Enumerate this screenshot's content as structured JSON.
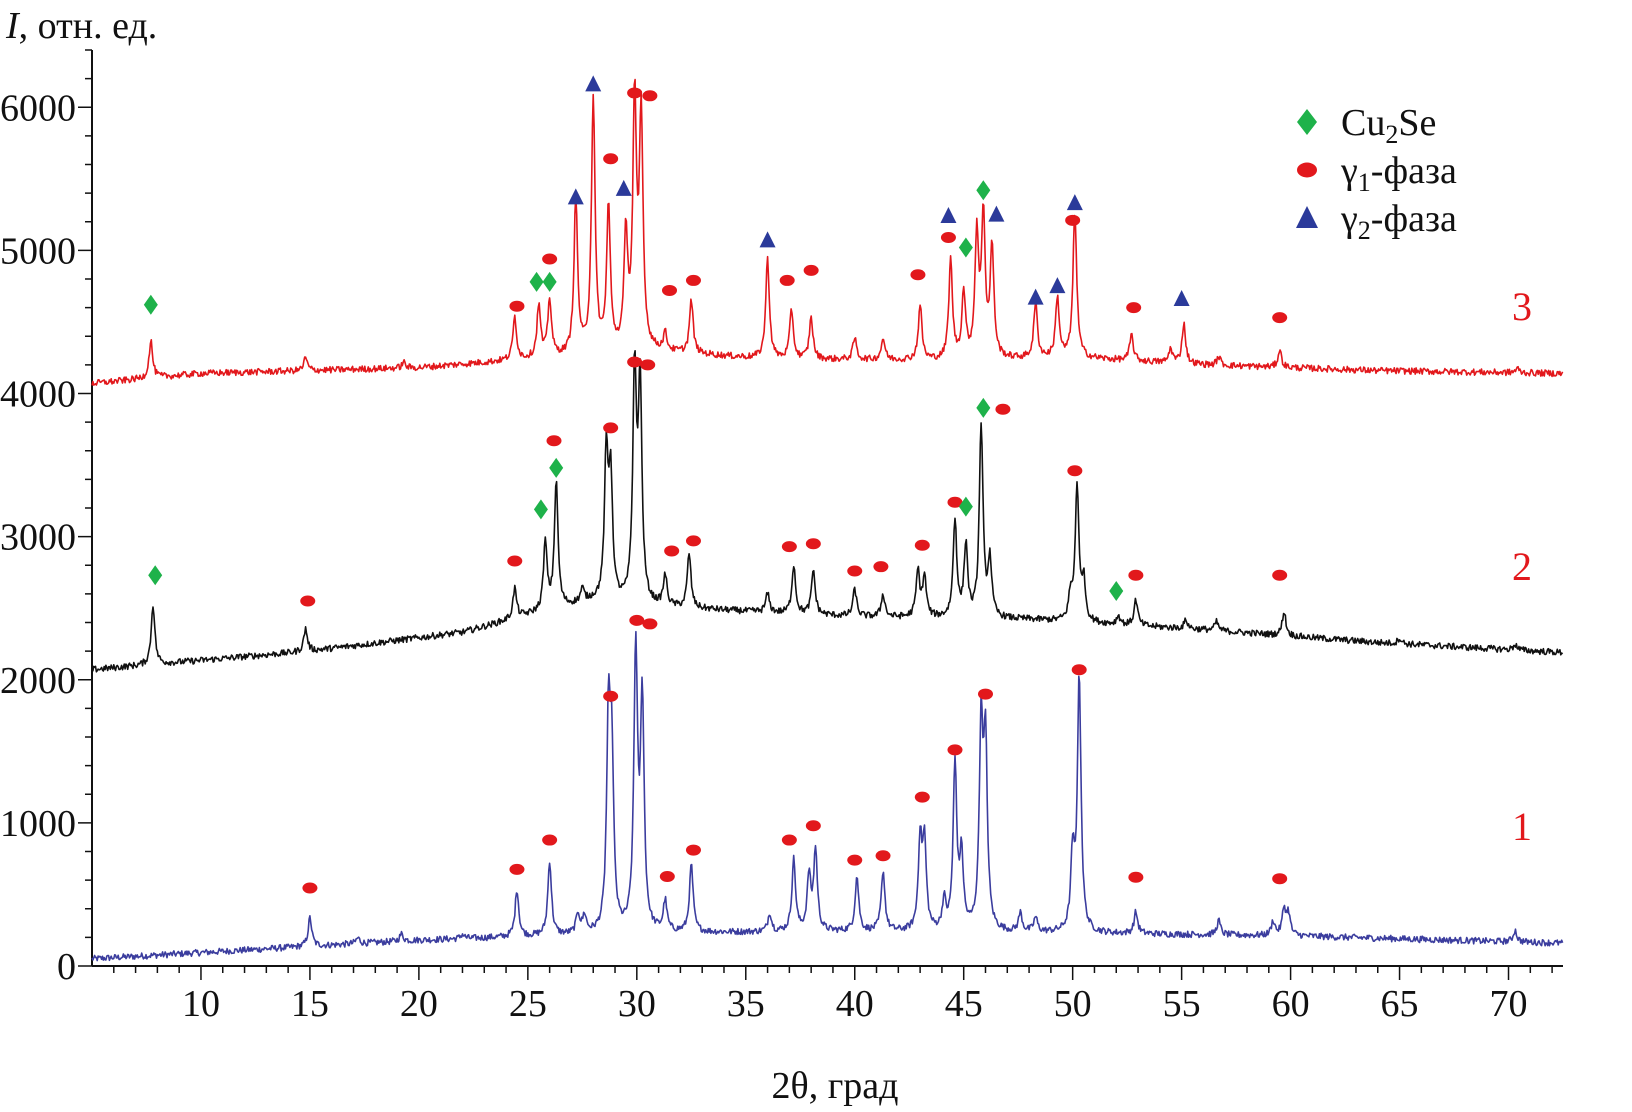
{
  "chart_data": {
    "type": "line",
    "ylabel_italic": "I",
    "ylabel_rest": ", отн. ед.",
    "xlabel": "2θ, град",
    "xlim": [
      5,
      72.5
    ],
    "ylim": [
      0,
      6400
    ],
    "x_ticks": [
      10,
      15,
      20,
      25,
      30,
      35,
      40,
      45,
      50,
      55,
      60,
      65,
      70
    ],
    "y_ticks": [
      0,
      1000,
      2000,
      3000,
      4000,
      5000,
      6000
    ],
    "legend": {
      "placement": "top-right",
      "entries": [
        {
          "marker": "diamond",
          "color": "#1eb24a",
          "text": "Cu",
          "sub": "2",
          "tail": "Se"
        },
        {
          "marker": "circle",
          "color": "#e2181c",
          "text": "γ",
          "sub": "1",
          "tail": "-фаза"
        },
        {
          "marker": "triangle",
          "color": "#2b3a9a",
          "text": "γ",
          "sub": "2",
          "tail": "-фаза"
        }
      ]
    },
    "series": [
      {
        "label": "1",
        "color": "#3b3d9e",
        "label_color": "#e2181c",
        "baseline": [
          [
            5,
            50
          ],
          [
            20,
            180
          ],
          [
            30,
            230
          ],
          [
            40,
            240
          ],
          [
            50,
            230
          ],
          [
            60,
            210
          ],
          [
            72.5,
            160
          ]
        ],
        "peaks": [
          [
            15,
            200
          ],
          [
            17.2,
            40
          ],
          [
            19.2,
            50
          ],
          [
            22,
            30
          ],
          [
            24.5,
            330
          ],
          [
            26,
            520
          ],
          [
            27.3,
            140
          ],
          [
            27.6,
            120
          ],
          [
            28.7,
            1400
          ],
          [
            28.85,
            1150
          ],
          [
            29.95,
            1950
          ],
          [
            30.25,
            1600
          ],
          [
            31.3,
            210
          ],
          [
            32.5,
            470
          ],
          [
            36.1,
            130
          ],
          [
            37.2,
            500
          ],
          [
            37.9,
            380
          ],
          [
            38.2,
            560
          ],
          [
            40.1,
            380
          ],
          [
            41.3,
            420
          ],
          [
            43,
            620
          ],
          [
            43.2,
            600
          ],
          [
            44.1,
            200
          ],
          [
            44.6,
            1150
          ],
          [
            44.9,
            500
          ],
          [
            45.8,
            1400
          ],
          [
            46,
            1250
          ],
          [
            47.6,
            130
          ],
          [
            48.3,
            100
          ],
          [
            50,
            520
          ],
          [
            50.3,
            1780
          ],
          [
            52.9,
            150
          ],
          [
            56.7,
            100
          ],
          [
            59.2,
            100
          ],
          [
            59.7,
            180
          ],
          [
            59.9,
            150
          ],
          [
            70.3,
            80
          ]
        ],
        "markers": [
          {
            "type": "circle",
            "x": 15,
            "y": 545
          },
          {
            "type": "circle",
            "x": 24.5,
            "y": 675
          },
          {
            "type": "circle",
            "x": 26,
            "y": 880
          },
          {
            "type": "circle",
            "x": 28.8,
            "y": 1885
          },
          {
            "type": "circle",
            "x": 30,
            "y": 2415
          },
          {
            "type": "circle",
            "x": 30.6,
            "y": 2390
          },
          {
            "type": "circle",
            "x": 31.4,
            "y": 625
          },
          {
            "type": "circle",
            "x": 32.6,
            "y": 810
          },
          {
            "type": "circle",
            "x": 37.0,
            "y": 880
          },
          {
            "type": "circle",
            "x": 38.1,
            "y": 980
          },
          {
            "type": "circle",
            "x": 40.0,
            "y": 740
          },
          {
            "type": "circle",
            "x": 41.3,
            "y": 770
          },
          {
            "type": "circle",
            "x": 43.1,
            "y": 1180
          },
          {
            "type": "circle",
            "x": 44.6,
            "y": 1510
          },
          {
            "type": "circle",
            "x": 46.0,
            "y": 1900
          },
          {
            "type": "circle",
            "x": 50.3,
            "y": 2070
          },
          {
            "type": "circle",
            "x": 52.9,
            "y": 620
          },
          {
            "type": "circle",
            "x": 59.5,
            "y": 610
          }
        ]
      },
      {
        "label": "2",
        "color": "#111111",
        "label_color": "#e2181c",
        "baseline": [
          [
            5,
            2070
          ],
          [
            15,
            2200
          ],
          [
            22,
            2330
          ],
          [
            25,
            2450
          ],
          [
            28,
            2550
          ],
          [
            32,
            2500
          ],
          [
            40,
            2440
          ],
          [
            48,
            2420
          ],
          [
            56,
            2350
          ],
          [
            64,
            2260
          ],
          [
            72.5,
            2190
          ]
        ],
        "peaks": [
          [
            7.8,
            420
          ],
          [
            14.8,
            160
          ],
          [
            24.4,
            210
          ],
          [
            25.8,
            470
          ],
          [
            26.3,
            880
          ],
          [
            27.5,
            90
          ],
          [
            28.6,
            1000
          ],
          [
            28.8,
            850
          ],
          [
            29.9,
            1600
          ],
          [
            30.15,
            1500
          ],
          [
            31.3,
            210
          ],
          [
            32.4,
            380
          ],
          [
            36.0,
            130
          ],
          [
            37.2,
            340
          ],
          [
            38.1,
            310
          ],
          [
            40.0,
            190
          ],
          [
            41.3,
            160
          ],
          [
            42.9,
            320
          ],
          [
            43.2,
            280
          ],
          [
            44.6,
            680
          ],
          [
            45.1,
            500
          ],
          [
            45.8,
            1350
          ],
          [
            46.2,
            400
          ],
          [
            49.9,
            170
          ],
          [
            50.2,
            950
          ],
          [
            50.5,
            280
          ],
          [
            52.1,
            60
          ],
          [
            52.9,
            180
          ],
          [
            55.2,
            60
          ],
          [
            56.6,
            60
          ],
          [
            59.7,
            170
          ],
          [
            65,
            40
          ],
          [
            70.3,
            40
          ]
        ],
        "markers": [
          {
            "type": "diamond",
            "x": 7.9,
            "y": 2730
          },
          {
            "type": "circle",
            "x": 14.9,
            "y": 2550
          },
          {
            "type": "circle",
            "x": 24.4,
            "y": 2830
          },
          {
            "type": "diamond",
            "x": 25.6,
            "y": 3190
          },
          {
            "type": "diamond",
            "x": 26.3,
            "y": 3480
          },
          {
            "type": "circle",
            "x": 26.2,
            "y": 3670
          },
          {
            "type": "circle",
            "x": 28.8,
            "y": 3760
          },
          {
            "type": "circle",
            "x": 29.9,
            "y": 4220
          },
          {
            "type": "circle",
            "x": 30.5,
            "y": 4200
          },
          {
            "type": "circle",
            "x": 31.6,
            "y": 2900
          },
          {
            "type": "circle",
            "x": 32.6,
            "y": 2970
          },
          {
            "type": "circle",
            "x": 37.0,
            "y": 2930
          },
          {
            "type": "circle",
            "x": 38.1,
            "y": 2950
          },
          {
            "type": "circle",
            "x": 40.0,
            "y": 2760
          },
          {
            "type": "circle",
            "x": 41.2,
            "y": 2790
          },
          {
            "type": "circle",
            "x": 43.1,
            "y": 2940
          },
          {
            "type": "circle",
            "x": 44.6,
            "y": 3240
          },
          {
            "type": "diamond",
            "x": 45.1,
            "y": 3210
          },
          {
            "type": "diamond",
            "x": 45.9,
            "y": 3900
          },
          {
            "type": "circle",
            "x": 46.8,
            "y": 3890
          },
          {
            "type": "circle",
            "x": 50.1,
            "y": 3460
          },
          {
            "type": "diamond",
            "x": 52.0,
            "y": 2620
          },
          {
            "type": "circle",
            "x": 52.9,
            "y": 2730
          },
          {
            "type": "circle",
            "x": 59.5,
            "y": 2730
          }
        ]
      },
      {
        "label": "3",
        "color": "#e2181c",
        "label_color": "#e2181c",
        "baseline": [
          [
            5,
            4070
          ],
          [
            10,
            4140
          ],
          [
            20,
            4180
          ],
          [
            26,
            4250
          ],
          [
            30,
            4300
          ],
          [
            36,
            4240
          ],
          [
            44,
            4230
          ],
          [
            50,
            4250
          ],
          [
            56,
            4200
          ],
          [
            64,
            4160
          ],
          [
            72.5,
            4140
          ]
        ],
        "peaks": [
          [
            7.7,
            260
          ],
          [
            14.8,
            90
          ],
          [
            19.3,
            40
          ],
          [
            24.4,
            300
          ],
          [
            25.5,
            360
          ],
          [
            26.0,
            400
          ],
          [
            27.2,
            1080
          ],
          [
            28.0,
            1780
          ],
          [
            28.7,
            1000
          ],
          [
            29.5,
            790
          ],
          [
            29.9,
            1700
          ],
          [
            30.2,
            1610
          ],
          [
            31.3,
            120
          ],
          [
            32.5,
            370
          ],
          [
            36.0,
            700
          ],
          [
            37.1,
            340
          ],
          [
            38.0,
            290
          ],
          [
            40.0,
            150
          ],
          [
            41.3,
            150
          ],
          [
            43.0,
            380
          ],
          [
            44.4,
            690
          ],
          [
            45.0,
            460
          ],
          [
            45.6,
            850
          ],
          [
            45.9,
            990
          ],
          [
            46.3,
            770
          ],
          [
            48.3,
            380
          ],
          [
            49.3,
            420
          ],
          [
            50.1,
            1020
          ],
          [
            52.7,
            180
          ],
          [
            54.5,
            100
          ],
          [
            55.1,
            280
          ],
          [
            56.7,
            60
          ],
          [
            59.5,
            120
          ],
          [
            70.4,
            30
          ]
        ],
        "markers": [
          {
            "type": "diamond",
            "x": 7.7,
            "y": 4620
          },
          {
            "type": "circle",
            "x": 24.5,
            "y": 4610
          },
          {
            "type": "diamond",
            "x": 25.4,
            "y": 4780
          },
          {
            "type": "diamond",
            "x": 26.0,
            "y": 4780
          },
          {
            "type": "circle",
            "x": 26.0,
            "y": 4940
          },
          {
            "type": "triangle",
            "x": 27.2,
            "y": 5370
          },
          {
            "type": "triangle",
            "x": 28.0,
            "y": 6160
          },
          {
            "type": "circle",
            "x": 28.8,
            "y": 5640
          },
          {
            "type": "triangle",
            "x": 29.4,
            "y": 5430
          },
          {
            "type": "circle",
            "x": 29.9,
            "y": 6100
          },
          {
            "type": "circle",
            "x": 30.6,
            "y": 6080
          },
          {
            "type": "circle",
            "x": 31.5,
            "y": 4720
          },
          {
            "type": "circle",
            "x": 32.6,
            "y": 4790
          },
          {
            "type": "triangle",
            "x": 36.0,
            "y": 5070
          },
          {
            "type": "circle",
            "x": 36.9,
            "y": 4790
          },
          {
            "type": "circle",
            "x": 38.0,
            "y": 4860
          },
          {
            "type": "circle",
            "x": 42.9,
            "y": 4830
          },
          {
            "type": "triangle",
            "x": 44.3,
            "y": 5240
          },
          {
            "type": "circle",
            "x": 44.3,
            "y": 5090
          },
          {
            "type": "diamond",
            "x": 45.1,
            "y": 5020
          },
          {
            "type": "diamond",
            "x": 45.9,
            "y": 5420
          },
          {
            "type": "triangle",
            "x": 46.5,
            "y": 5250
          },
          {
            "type": "triangle",
            "x": 48.3,
            "y": 4670
          },
          {
            "type": "triangle",
            "x": 49.3,
            "y": 4750
          },
          {
            "type": "triangle",
            "x": 50.1,
            "y": 5330
          },
          {
            "type": "circle",
            "x": 50.0,
            "y": 5210
          },
          {
            "type": "circle",
            "x": 52.8,
            "y": 4600
          },
          {
            "type": "triangle",
            "x": 55.0,
            "y": 4660
          },
          {
            "type": "circle",
            "x": 59.5,
            "y": 4530
          }
        ]
      }
    ]
  }
}
